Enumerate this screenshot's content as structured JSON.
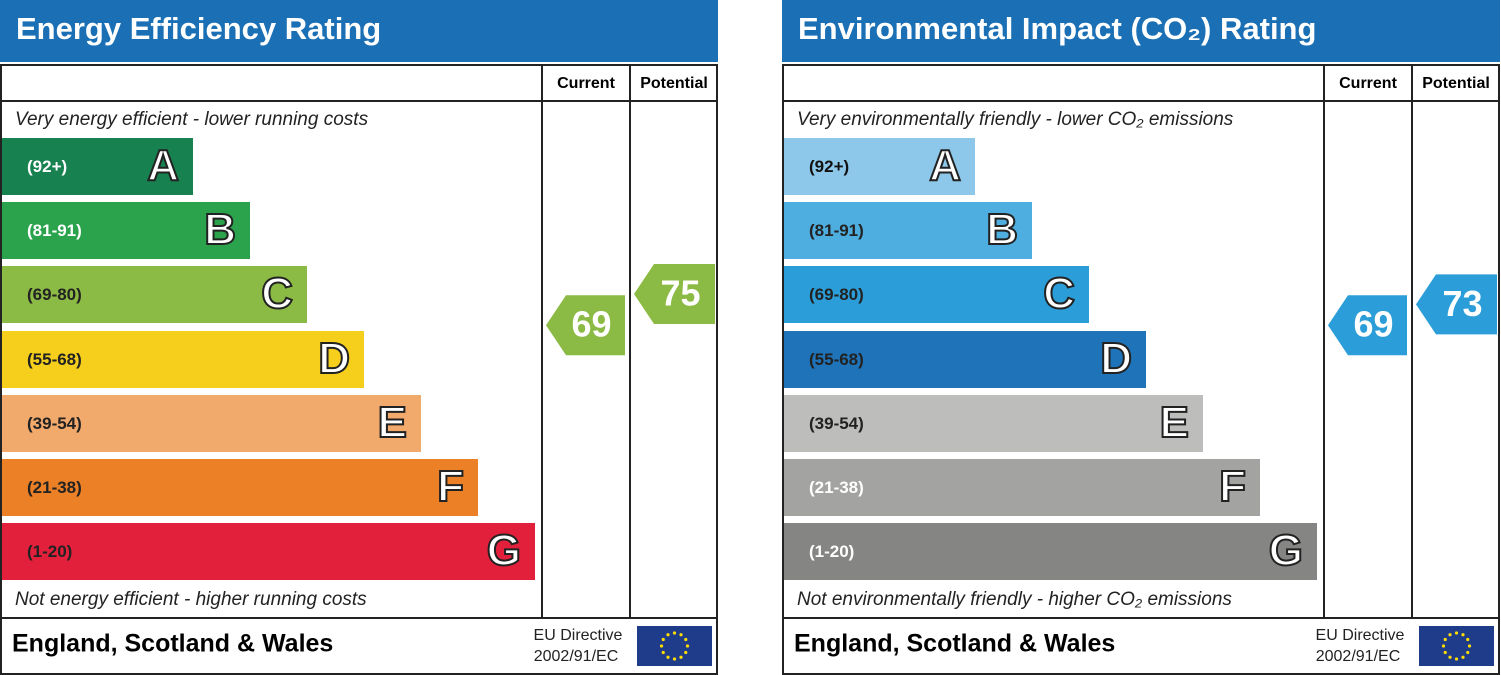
{
  "panels": [
    {
      "title": "Energy Efficiency Rating",
      "columns": [
        "Current",
        "Potential"
      ],
      "top_note": "Very energy efficient - lower running costs",
      "bottom_note": "Not energy efficient - higher running costs",
      "bands": [
        {
          "range": "(92+)",
          "letter": "A",
          "color": "#17824f",
          "text_color": "#ffffff"
        },
        {
          "range": "(81-91)",
          "letter": "B",
          "color": "#2ba24c",
          "text_color": "#ffffff"
        },
        {
          "range": "(69-80)",
          "letter": "C",
          "color": "#8cbb45",
          "text_color": "#222222"
        },
        {
          "range": "(55-68)",
          "letter": "D",
          "color": "#f5cf1b",
          "text_color": "#222222"
        },
        {
          "range": "(39-54)",
          "letter": "E",
          "color": "#f2a96c",
          "text_color": "#222222"
        },
        {
          "range": "(21-38)",
          "letter": "F",
          "color": "#ec8027",
          "text_color": "#222222"
        },
        {
          "range": "(1-20)",
          "letter": "G",
          "color": "#e3203b",
          "text_color": "#222222"
        }
      ],
      "current": 69,
      "current_color": "#8cbb45",
      "potential": 75,
      "potential_color": "#8cbb45",
      "footer": "England, Scotland & Wales",
      "directive": [
        "EU Directive",
        "2002/91/EC"
      ]
    },
    {
      "title": "Environmental Impact (CO₂) Rating",
      "columns": [
        "Current",
        "Potential"
      ],
      "top_note": "Very environmentally friendly - lower CO₂ emissions",
      "bottom_note": "Not environmentally friendly - higher CO₂ emissions",
      "bands": [
        {
          "range": "(92+)",
          "letter": "A",
          "color": "#8dc8ea",
          "text_color": "#111111"
        },
        {
          "range": "(81-91)",
          "letter": "B",
          "color": "#4faee0",
          "text_color": "#222222"
        },
        {
          "range": "(69-80)",
          "letter": "C",
          "color": "#2b9dd8",
          "text_color": "#222222"
        },
        {
          "range": "(55-68)",
          "letter": "D",
          "color": "#1e73b9",
          "text_color": "#222222"
        },
        {
          "range": "(39-54)",
          "letter": "E",
          "color": "#bdbdbb",
          "text_color": "#222222"
        },
        {
          "range": "(21-38)",
          "letter": "F",
          "color": "#a3a3a1",
          "text_color": "#ffffff"
        },
        {
          "range": "(1-20)",
          "letter": "G",
          "color": "#858584",
          "text_color": "#ffffff"
        }
      ],
      "current": 69,
      "current_color": "#2b9dd8",
      "potential": 73,
      "potential_color": "#2b9dd8",
      "footer": "England, Scotland & Wales",
      "directive": [
        "EU Directive",
        "2002/91/EC"
      ]
    }
  ]
}
